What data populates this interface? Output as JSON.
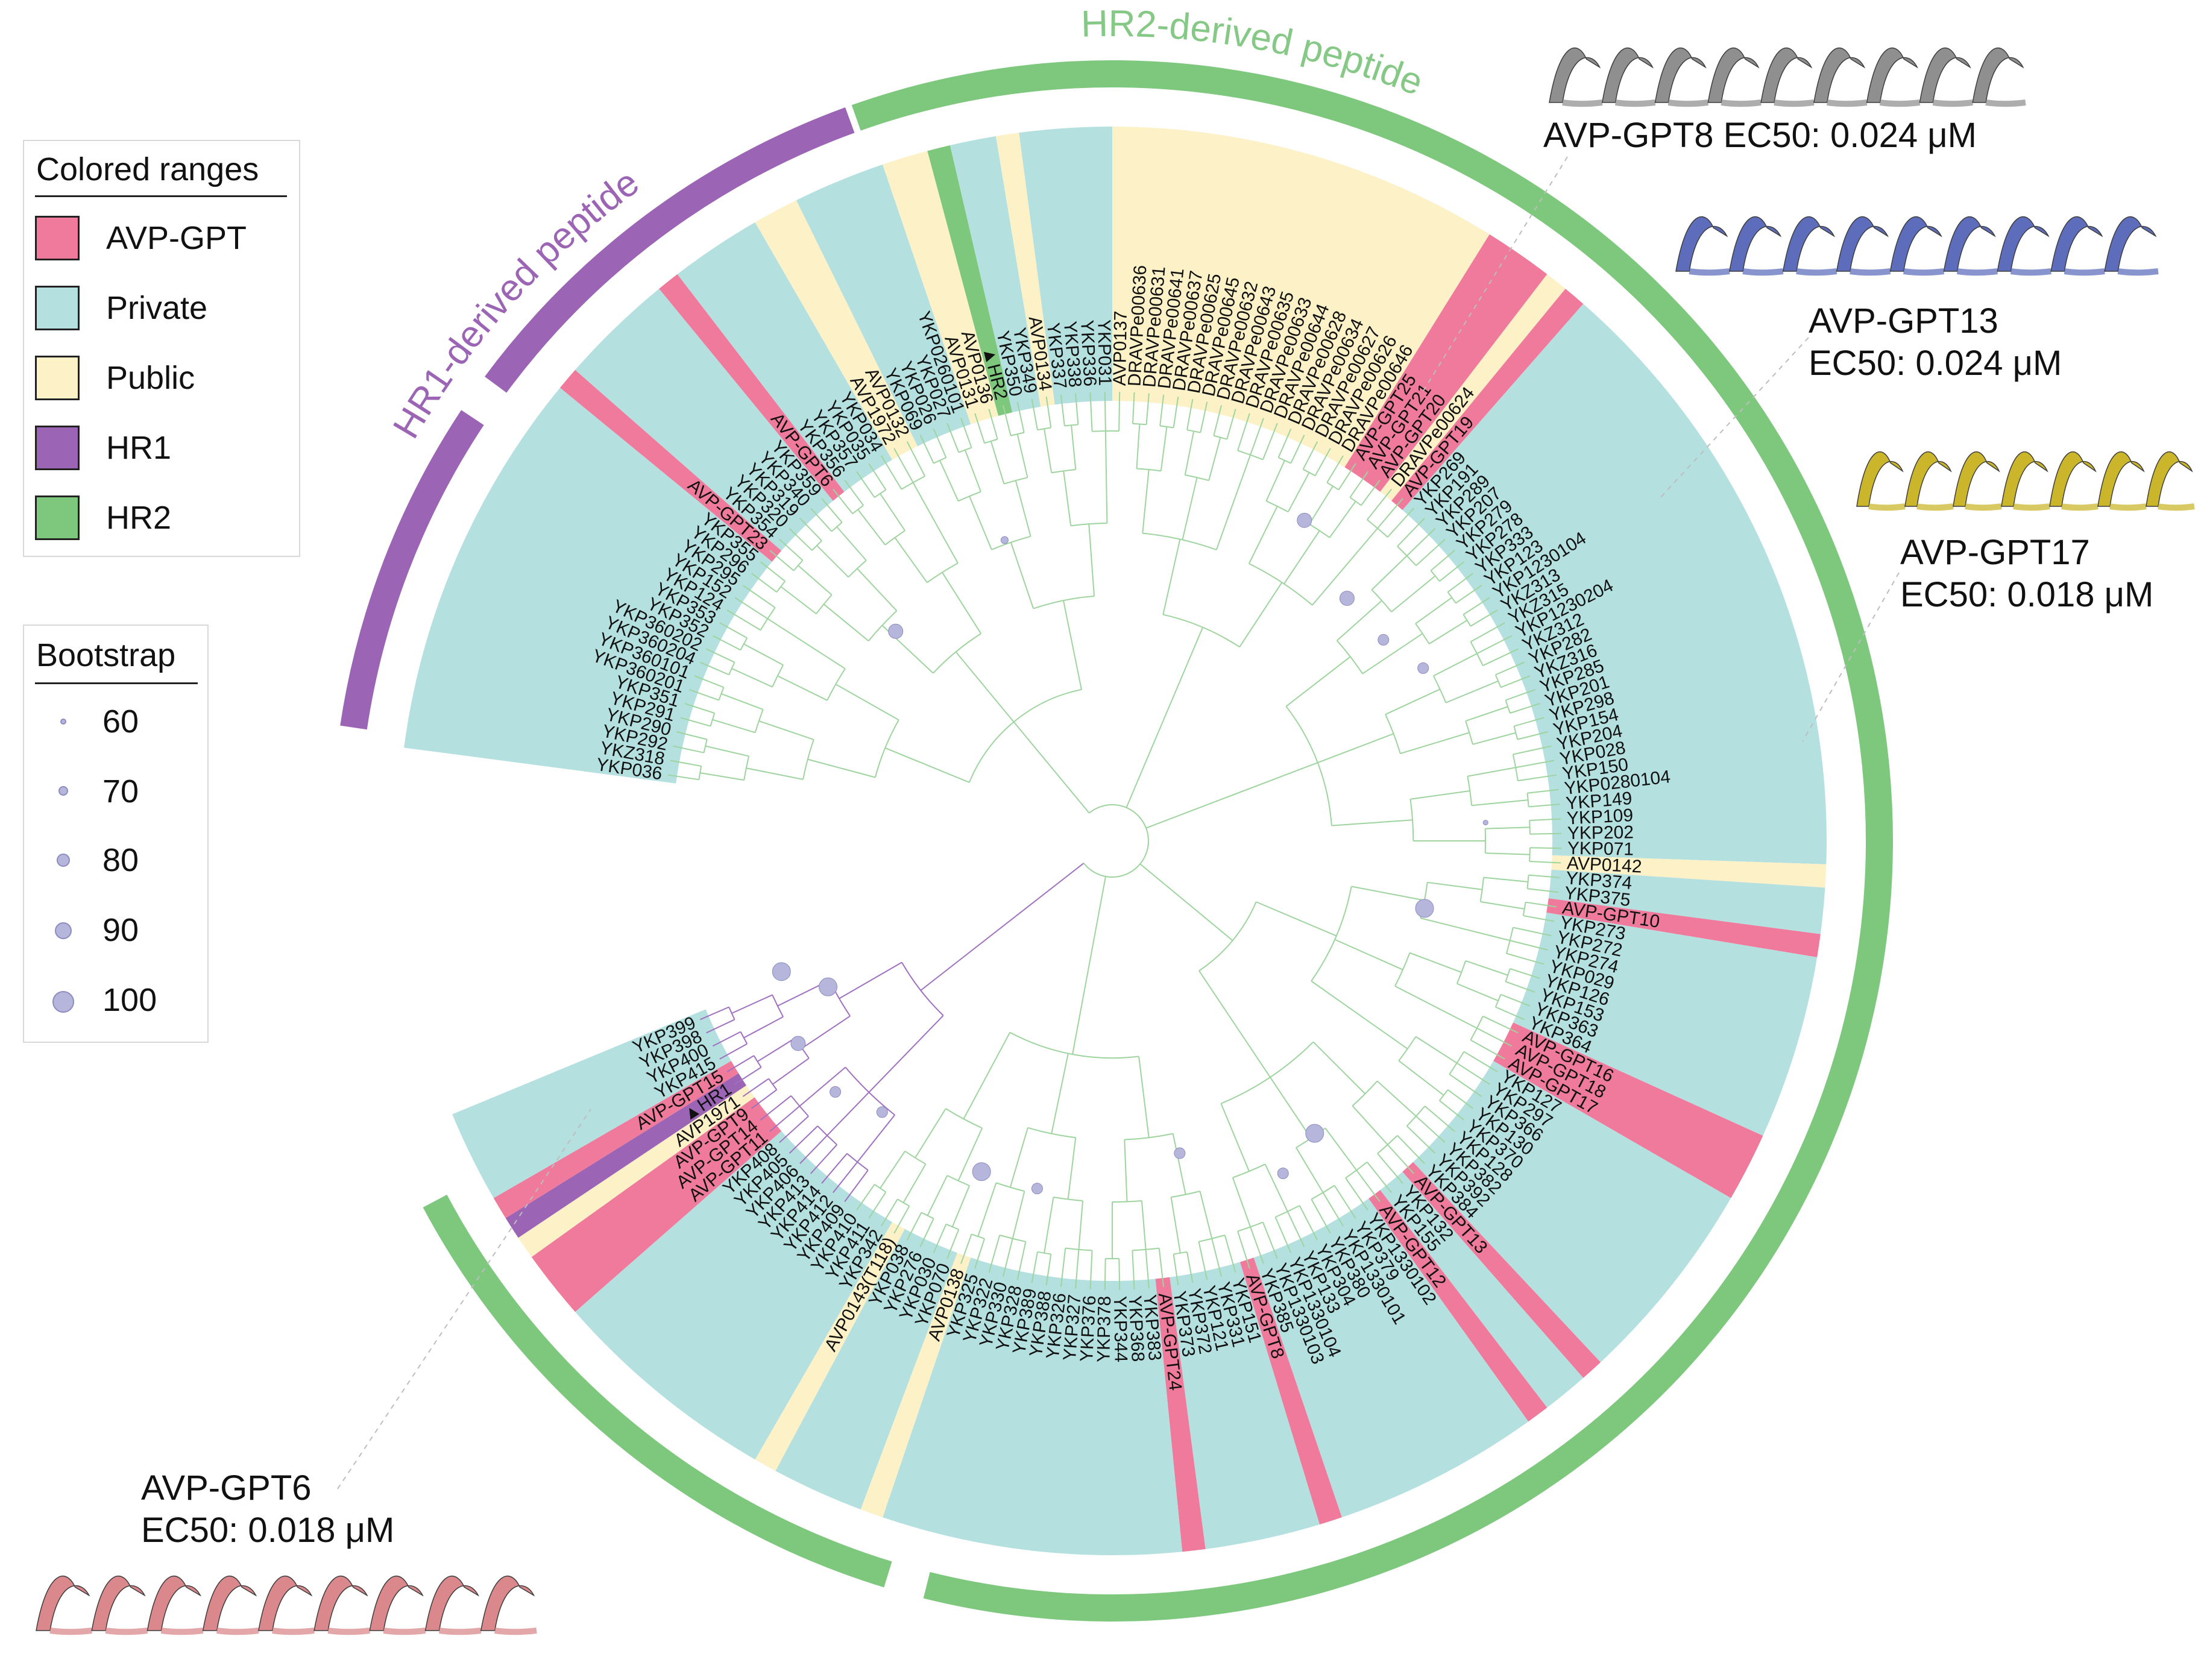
{
  "arc_labels": {
    "hr2": "HR2-derived peptide",
    "hr1": "HR1-derived peptide"
  },
  "legend_ranges": {
    "title": "Colored ranges",
    "items": [
      {
        "label": "AVP-GPT",
        "color": "#f07a9b"
      },
      {
        "label": "Private",
        "color": "#b5e0e0"
      },
      {
        "label": "Public",
        "color": "#fdf1c8"
      },
      {
        "label": "HR1",
        "color": "#9b64b4"
      },
      {
        "label": "HR2",
        "color": "#7ec87e"
      }
    ]
  },
  "legend_bootstrap": {
    "title": "Bootstrap",
    "items": [
      {
        "label": "60",
        "value": 60
      },
      {
        "label": "70",
        "value": 70
      },
      {
        "label": "80",
        "value": 80
      },
      {
        "label": "90",
        "value": 90
      },
      {
        "label": "100",
        "value": 100
      }
    ]
  },
  "annotations": [
    {
      "id": "gpt8",
      "line1": "AVP-GPT8 EC50: 0.024 μM",
      "line2": "",
      "helix_color": "#8a8a8a"
    },
    {
      "id": "gpt13",
      "line1": "AVP-GPT13",
      "line2": "EC50: 0.024 μM",
      "helix_color": "#5566b8"
    },
    {
      "id": "gpt17",
      "line1": "AVP-GPT17",
      "line2": "EC50: 0.018 μM",
      "helix_color": "#c9b220"
    },
    {
      "id": "gpt6",
      "line1": "AVP-GPT6",
      "line2": "EC50: 0.018 μM",
      "helix_color": "#d98285"
    }
  ],
  "colors": {
    "gpt": "#f07a9b",
    "private": "#b5e0e0",
    "public": "#fdf1c8",
    "hr1": "#9b64b4",
    "hr2": "#7ec87e",
    "hr1_text": "#9b64b4",
    "hr2_text": "#86c886",
    "branch_hr2": "#9ed49e",
    "branch_hr1": "#a070c0",
    "bootstrap": "#b6b6dc"
  },
  "leaves": [
    {
      "name": "YKP036",
      "cat": "private"
    },
    {
      "name": "YKZ318",
      "cat": "private"
    },
    {
      "name": "YKP292",
      "cat": "private"
    },
    {
      "name": "YKP290",
      "cat": "private"
    },
    {
      "name": "YKP291",
      "cat": "private"
    },
    {
      "name": "YKP351",
      "cat": "private"
    },
    {
      "name": "YKP360201",
      "cat": "private"
    },
    {
      "name": "YKP360101",
      "cat": "private"
    },
    {
      "name": "YKP360204",
      "cat": "private"
    },
    {
      "name": "YKP360202",
      "cat": "private"
    },
    {
      "name": "YKP352",
      "cat": "private"
    },
    {
      "name": "YKP353",
      "cat": "private"
    },
    {
      "name": "YKP124",
      "cat": "private"
    },
    {
      "name": "YKP152",
      "cat": "private"
    },
    {
      "name": "YKP295",
      "cat": "private"
    },
    {
      "name": "YKP296",
      "cat": "private"
    },
    {
      "name": "YKP355",
      "cat": "private"
    },
    {
      "name": "AVP-GPT23",
      "cat": "gpt"
    },
    {
      "name": "YKP354",
      "cat": "private"
    },
    {
      "name": "YKP320",
      "cat": "private"
    },
    {
      "name": "YKP319",
      "cat": "private"
    },
    {
      "name": "YKP340",
      "cat": "private"
    },
    {
      "name": "YKP359",
      "cat": "private"
    },
    {
      "name": "AVP-GPT6",
      "cat": "gpt"
    },
    {
      "name": "YKP356",
      "cat": "private"
    },
    {
      "name": "YKP357",
      "cat": "private"
    },
    {
      "name": "YKP035",
      "cat": "private"
    },
    {
      "name": "YKP034",
      "cat": "private"
    },
    {
      "name": "AVP1972",
      "cat": "public"
    },
    {
      "name": "AVP0132",
      "cat": "public"
    },
    {
      "name": "YKP069",
      "cat": "private"
    },
    {
      "name": "YKP026",
      "cat": "private"
    },
    {
      "name": "YKP027",
      "cat": "private"
    },
    {
      "name": "YKP0260101",
      "cat": "private"
    },
    {
      "name": "AVP0131",
      "cat": "public"
    },
    {
      "name": "AVP0136",
      "cat": "public"
    },
    {
      "name": "▲HR2",
      "cat": "hr2"
    },
    {
      "name": "YKP350",
      "cat": "private"
    },
    {
      "name": "YKP349",
      "cat": "private"
    },
    {
      "name": "AVP0134",
      "cat": "public"
    },
    {
      "name": "YKP337",
      "cat": "private"
    },
    {
      "name": "YKP338",
      "cat": "private"
    },
    {
      "name": "YKP336",
      "cat": "private"
    },
    {
      "name": "YKP031",
      "cat": "private"
    },
    {
      "name": "AVP0137",
      "cat": "public"
    },
    {
      "name": "DRAVPe00636",
      "cat": "public"
    },
    {
      "name": "DRAVPe00631",
      "cat": "public"
    },
    {
      "name": "DRAVPe00641",
      "cat": "public"
    },
    {
      "name": "DRAVPe00637",
      "cat": "public"
    },
    {
      "name": "DRAVPe00625",
      "cat": "public"
    },
    {
      "name": "DRAVPe00645",
      "cat": "public"
    },
    {
      "name": "DRAVPe00632",
      "cat": "public"
    },
    {
      "name": "DRAVPe00643",
      "cat": "public"
    },
    {
      "name": "DRAVPe00635",
      "cat": "public"
    },
    {
      "name": "DRAVPe00633",
      "cat": "public"
    },
    {
      "name": "DRAVPe00644",
      "cat": "public"
    },
    {
      "name": "DRAVPe00628",
      "cat": "public"
    },
    {
      "name": "DRAVPe00634",
      "cat": "public"
    },
    {
      "name": "DRAVPe00627",
      "cat": "public"
    },
    {
      "name": "DRAVPe00626",
      "cat": "public"
    },
    {
      "name": "DRAVPe00646",
      "cat": "public"
    },
    {
      "name": "AVP-GPT25",
      "cat": "gpt"
    },
    {
      "name": "AVP-GPT21",
      "cat": "gpt"
    },
    {
      "name": "AVP-GPT20",
      "cat": "gpt"
    },
    {
      "name": "DRAVPe00624",
      "cat": "public"
    },
    {
      "name": "AVP-GPT19",
      "cat": "gpt"
    },
    {
      "name": "YKP269",
      "cat": "private"
    },
    {
      "name": "YKP191",
      "cat": "private"
    },
    {
      "name": "YKP289",
      "cat": "private"
    },
    {
      "name": "YKP207",
      "cat": "private"
    },
    {
      "name": "YKP279",
      "cat": "private"
    },
    {
      "name": "YKP278",
      "cat": "private"
    },
    {
      "name": "YKP333",
      "cat": "private"
    },
    {
      "name": "YKP123",
      "cat": "private"
    },
    {
      "name": "YKP1230104",
      "cat": "private"
    },
    {
      "name": "YKZ313",
      "cat": "private"
    },
    {
      "name": "YKZ315",
      "cat": "private"
    },
    {
      "name": "YKP1230204",
      "cat": "private"
    },
    {
      "name": "YKZ312",
      "cat": "private"
    },
    {
      "name": "YKP282",
      "cat": "private"
    },
    {
      "name": "YKZ316",
      "cat": "private"
    },
    {
      "name": "YKP285",
      "cat": "private"
    },
    {
      "name": "YKP201",
      "cat": "private"
    },
    {
      "name": "YKP298",
      "cat": "private"
    },
    {
      "name": "YKP154",
      "cat": "private"
    },
    {
      "name": "YKP204",
      "cat": "private"
    },
    {
      "name": "YKP028",
      "cat": "private"
    },
    {
      "name": "YKP150",
      "cat": "private"
    },
    {
      "name": "YKP0280104",
      "cat": "private"
    },
    {
      "name": "YKP149",
      "cat": "private"
    },
    {
      "name": "YKP109",
      "cat": "private"
    },
    {
      "name": "YKP202",
      "cat": "private"
    },
    {
      "name": "YKP071",
      "cat": "private"
    },
    {
      "name": "AVP0142",
      "cat": "public"
    },
    {
      "name": "YKP374",
      "cat": "private"
    },
    {
      "name": "YKP375",
      "cat": "private"
    },
    {
      "name": "AVP-GPT10",
      "cat": "gpt"
    },
    {
      "name": "YKP273",
      "cat": "private"
    },
    {
      "name": "YKP272",
      "cat": "private"
    },
    {
      "name": "YKP274",
      "cat": "private"
    },
    {
      "name": "YKP029",
      "cat": "private"
    },
    {
      "name": "YKP126",
      "cat": "private"
    },
    {
      "name": "YKP153",
      "cat": "private"
    },
    {
      "name": "YKP363",
      "cat": "private"
    },
    {
      "name": "YKP364",
      "cat": "private"
    },
    {
      "name": "AVP-GPT16",
      "cat": "gpt"
    },
    {
      "name": "AVP-GPT18",
      "cat": "gpt"
    },
    {
      "name": "AVP-GPT17",
      "cat": "gpt"
    },
    {
      "name": "YKP127",
      "cat": "private"
    },
    {
      "name": "YKP297",
      "cat": "private"
    },
    {
      "name": "YKP366",
      "cat": "private"
    },
    {
      "name": "YKP130",
      "cat": "private"
    },
    {
      "name": "YKP370",
      "cat": "private"
    },
    {
      "name": "YKP128",
      "cat": "private"
    },
    {
      "name": "YKP382",
      "cat": "private"
    },
    {
      "name": "YKP392",
      "cat": "private"
    },
    {
      "name": "YKP384",
      "cat": "private"
    },
    {
      "name": "AVP-GPT13",
      "cat": "gpt"
    },
    {
      "name": "YKP132",
      "cat": "private"
    },
    {
      "name": "YKP155",
      "cat": "private"
    },
    {
      "name": "AVP-GPT12",
      "cat": "gpt"
    },
    {
      "name": "YKP1330102",
      "cat": "private"
    },
    {
      "name": "YKP379",
      "cat": "private"
    },
    {
      "name": "YKP1330101",
      "cat": "private"
    },
    {
      "name": "YKP380",
      "cat": "private"
    },
    {
      "name": "YKP304",
      "cat": "private"
    },
    {
      "name": "YKP133",
      "cat": "private"
    },
    {
      "name": "YKP1330104",
      "cat": "private"
    },
    {
      "name": "YKP1330103",
      "cat": "private"
    },
    {
      "name": "YKP385",
      "cat": "private"
    },
    {
      "name": "AVP-GPT8",
      "cat": "gpt"
    },
    {
      "name": "YKP151",
      "cat": "private"
    },
    {
      "name": "YKP331",
      "cat": "private"
    },
    {
      "name": "YKP121",
      "cat": "private"
    },
    {
      "name": "YKP372",
      "cat": "private"
    },
    {
      "name": "YKP373",
      "cat": "private"
    },
    {
      "name": "AVP-GPT24",
      "cat": "gpt"
    },
    {
      "name": "YKP383",
      "cat": "private"
    },
    {
      "name": "YKP368",
      "cat": "private"
    },
    {
      "name": "YKP344",
      "cat": "private"
    },
    {
      "name": "YKP378",
      "cat": "private"
    },
    {
      "name": "YKP376",
      "cat": "private"
    },
    {
      "name": "YKP327",
      "cat": "private"
    },
    {
      "name": "YKP326",
      "cat": "private"
    },
    {
      "name": "YKP388",
      "cat": "private"
    },
    {
      "name": "YKP389",
      "cat": "private"
    },
    {
      "name": "YKP328",
      "cat": "private"
    },
    {
      "name": "YKP330",
      "cat": "private"
    },
    {
      "name": "YKP322",
      "cat": "private"
    },
    {
      "name": "YKP325",
      "cat": "private"
    },
    {
      "name": "AVP0138",
      "cat": "public"
    },
    {
      "name": "YKP070",
      "cat": "private"
    },
    {
      "name": "YKP030",
      "cat": "private"
    },
    {
      "name": "YKP276",
      "cat": "private"
    },
    {
      "name": "YKP038",
      "cat": "private"
    },
    {
      "name": "AVP0143(T118)",
      "cat": "public"
    },
    {
      "name": "YKP342",
      "cat": "private"
    },
    {
      "name": "YKP411",
      "cat": "private"
    },
    {
      "name": "YKP410",
      "cat": "private"
    },
    {
      "name": "YKP409",
      "cat": "private"
    },
    {
      "name": "YKP412",
      "cat": "private"
    },
    {
      "name": "YKP414",
      "cat": "private"
    },
    {
      "name": "YKP413",
      "cat": "private"
    },
    {
      "name": "YKP406",
      "cat": "private"
    },
    {
      "name": "YKP405",
      "cat": "private"
    },
    {
      "name": "YKP408",
      "cat": "private"
    },
    {
      "name": "AVP-GPT11",
      "cat": "gpt"
    },
    {
      "name": "AVP-GPT14",
      "cat": "gpt"
    },
    {
      "name": "AVP-GPT9",
      "cat": "gpt"
    },
    {
      "name": "AVP1971",
      "cat": "public"
    },
    {
      "name": "▲HR1",
      "cat": "hr1"
    },
    {
      "name": "AVP-GPT15",
      "cat": "gpt"
    },
    {
      "name": "YKP415",
      "cat": "private"
    },
    {
      "name": "YKP400",
      "cat": "private"
    },
    {
      "name": "YKP398",
      "cat": "private"
    },
    {
      "name": "YKP399",
      "cat": "private"
    }
  ],
  "bootstrap_nodes": [
    {
      "leaf": 19,
      "value": 90
    },
    {
      "leaf": 33,
      "value": 70
    },
    {
      "leaf": 60,
      "value": 90
    },
    {
      "leaf": 67,
      "value": 90
    },
    {
      "leaf": 72,
      "value": 80
    },
    {
      "leaf": 76,
      "value": 80
    },
    {
      "leaf": 90,
      "value": 60
    },
    {
      "leaf": 98,
      "value": 100
    },
    {
      "leaf": 121,
      "value": 100
    },
    {
      "leaf": 125,
      "value": 80
    },
    {
      "leaf": 133,
      "value": 80
    },
    {
      "leaf": 146,
      "value": 80
    },
    {
      "leaf": 151,
      "value": 100
    },
    {
      "leaf": 161,
      "value": 80
    },
    {
      "leaf": 165,
      "value": 80
    },
    {
      "leaf": 170,
      "value": 90
    },
    {
      "leaf": 173,
      "value": 100
    },
    {
      "leaf": 176,
      "value": 100
    }
  ]
}
